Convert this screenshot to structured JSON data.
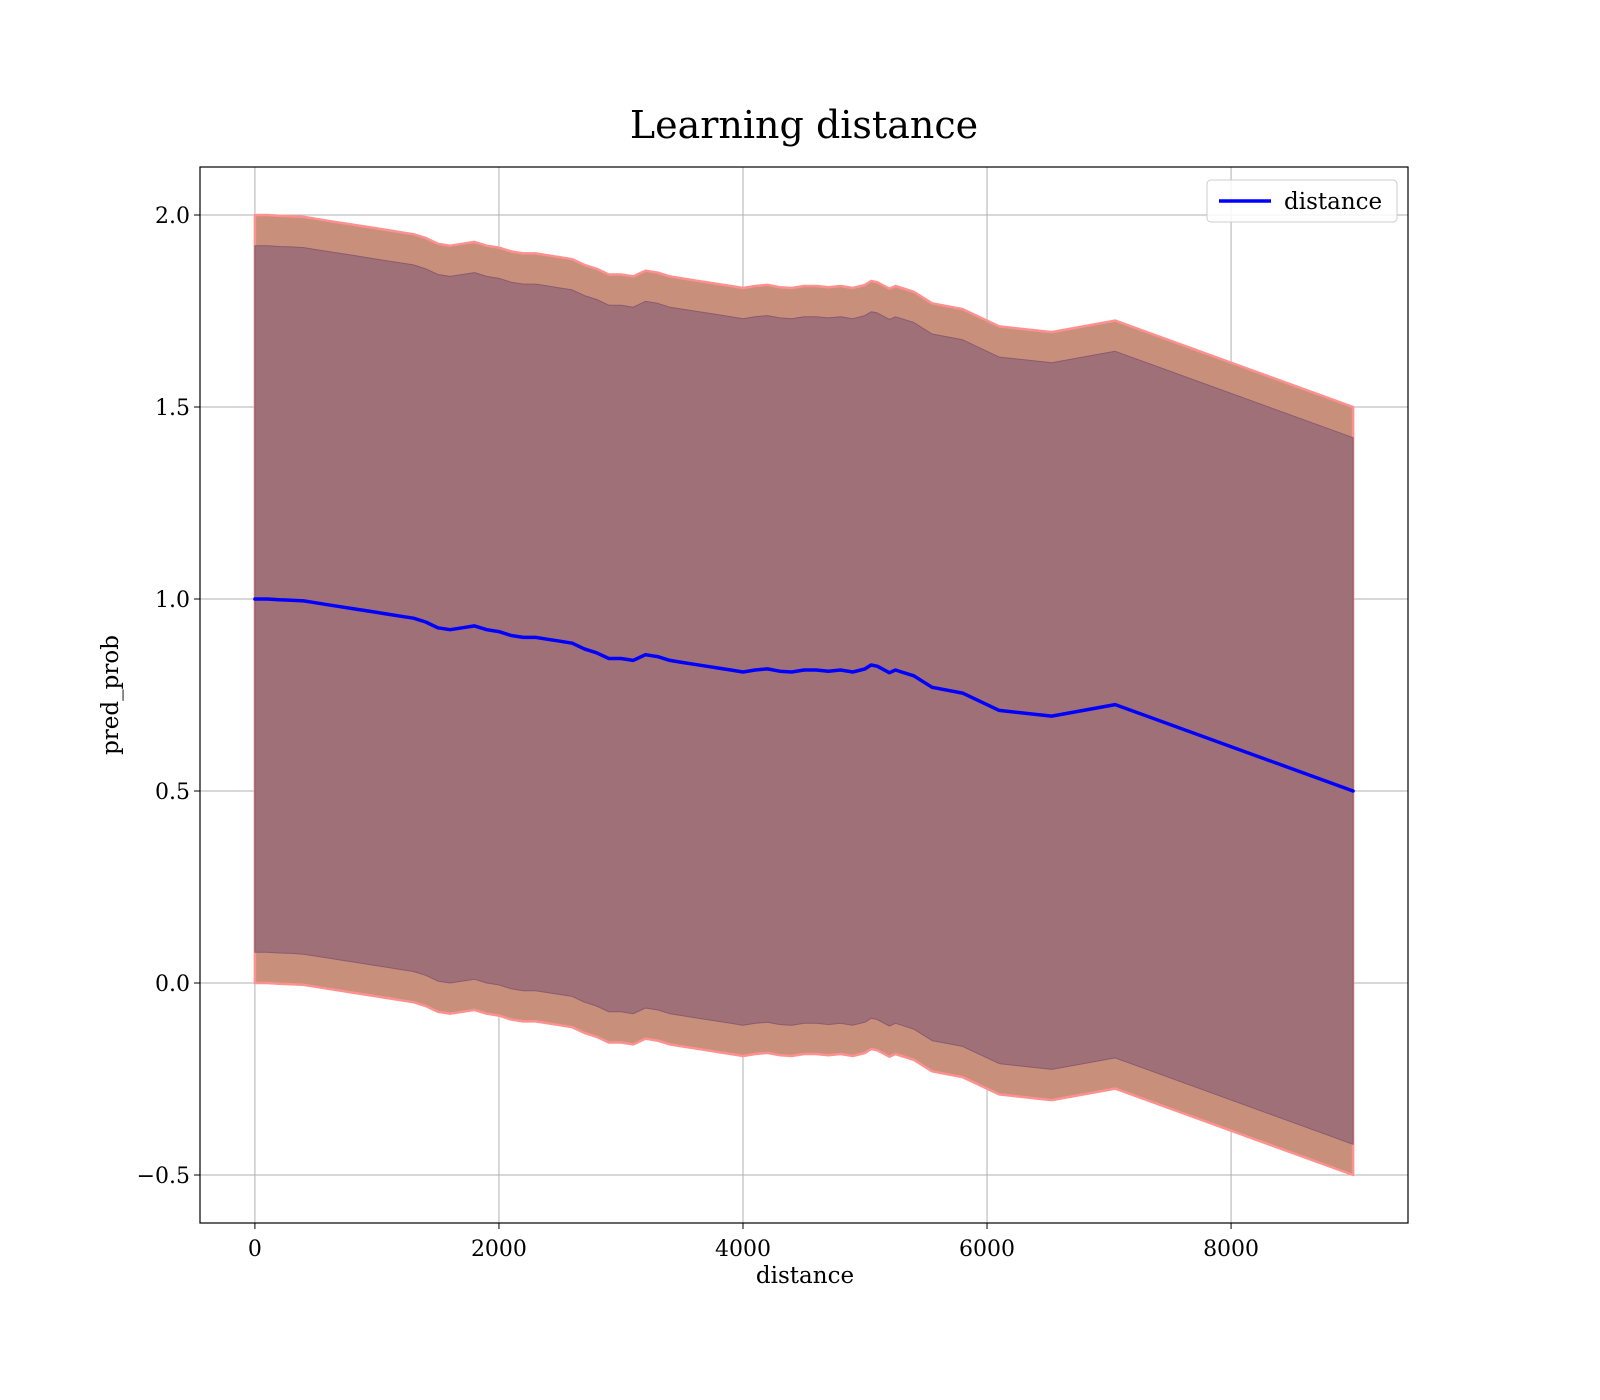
{
  "chart_data": {
    "type": "line",
    "title": "Learning distance",
    "xlabel": "distance",
    "ylabel": "pred_prob",
    "xlim": [
      -450,
      9450
    ],
    "ylim": [
      -0.625,
      2.125
    ],
    "xticks": [
      0,
      2000,
      4000,
      6000,
      8000
    ],
    "xtick_labels": [
      "0",
      "2000",
      "4000",
      "6000",
      "8000"
    ],
    "yticks": [
      -0.5,
      0.0,
      0.5,
      1.0,
      1.5,
      2.0
    ],
    "ytick_labels": [
      "−0.5",
      "0.0",
      "0.5",
      "1.0",
      "1.5",
      "2.0"
    ],
    "grid": true,
    "legend_position": "top-right",
    "colors": {
      "line": "#0000ff",
      "outer_band_fill": "#c8907a",
      "outer_band_edge": "#ff9090",
      "inner_band_fill": "#a07078",
      "grid": "#b0b0b0"
    },
    "series": [
      {
        "name": "distance",
        "x": [
          0,
          100,
          200,
          300,
          400,
          500,
          600,
          700,
          800,
          900,
          1000,
          1100,
          1200,
          1300,
          1400,
          1500,
          1600,
          1700,
          1800,
          1900,
          2000,
          2100,
          2200,
          2300,
          2400,
          2500,
          2600,
          2700,
          2800,
          2900,
          3000,
          3100,
          3200,
          3300,
          3400,
          3500,
          3600,
          3700,
          3800,
          3900,
          4000,
          4100,
          4200,
          4300,
          4400,
          4500,
          4600,
          4700,
          4800,
          4900,
          5000,
          5050,
          5100,
          5200,
          5250,
          5300,
          5400,
          5550,
          5800,
          6100,
          6530,
          7050,
          9000
        ],
        "values": [
          1.0,
          1.0,
          0.998,
          0.997,
          0.995,
          0.99,
          0.985,
          0.98,
          0.975,
          0.97,
          0.965,
          0.96,
          0.955,
          0.95,
          0.94,
          0.925,
          0.92,
          0.925,
          0.93,
          0.92,
          0.915,
          0.905,
          0.9,
          0.9,
          0.895,
          0.89,
          0.885,
          0.87,
          0.86,
          0.845,
          0.845,
          0.84,
          0.855,
          0.85,
          0.84,
          0.835,
          0.83,
          0.825,
          0.82,
          0.815,
          0.81,
          0.815,
          0.818,
          0.812,
          0.81,
          0.815,
          0.815,
          0.812,
          0.815,
          0.81,
          0.818,
          0.828,
          0.825,
          0.808,
          0.815,
          0.81,
          0.8,
          0.77,
          0.755,
          0.71,
          0.695,
          0.725,
          0.5
        ],
        "outer_band": {
          "lower_offset": -1.0,
          "upper_offset": 1.0
        },
        "inner_band": {
          "lower_offset": -0.92,
          "upper_offset": 0.92
        }
      }
    ]
  }
}
